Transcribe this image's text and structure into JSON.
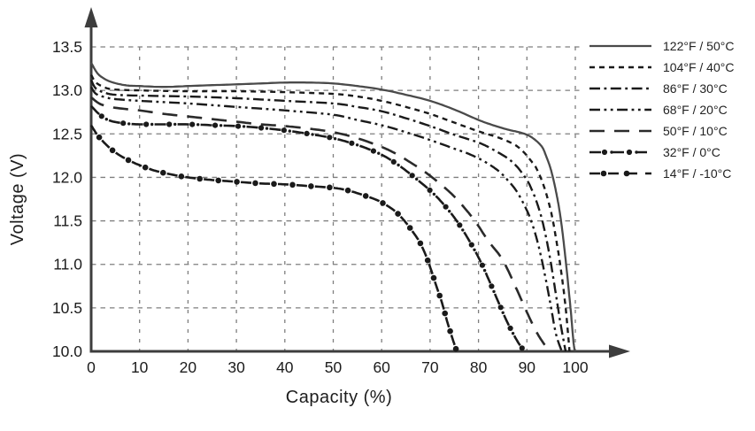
{
  "chart_data": {
    "type": "line",
    "title": "",
    "xlabel": "Capacity (%)",
    "ylabel": "Voltage (V)",
    "xlim": [
      0,
      100
    ],
    "ylim": [
      10.0,
      13.5
    ],
    "x_ticks": [
      0,
      10,
      20,
      30,
      40,
      50,
      60,
      70,
      80,
      90,
      100
    ],
    "y_ticks": [
      10.0,
      10.5,
      11.0,
      11.5,
      12.0,
      12.5,
      13.0,
      13.5
    ],
    "grid": "dashed",
    "legend_position": "right",
    "series": [
      {
        "name": "122°F / 50°C",
        "style": "solid",
        "points": [
          [
            0,
            13.32
          ],
          [
            1,
            13.22
          ],
          [
            2,
            13.16
          ],
          [
            4,
            13.1
          ],
          [
            7,
            13.06
          ],
          [
            10,
            13.05
          ],
          [
            15,
            13.04
          ],
          [
            20,
            13.05
          ],
          [
            25,
            13.06
          ],
          [
            30,
            13.07
          ],
          [
            35,
            13.08
          ],
          [
            40,
            13.09
          ],
          [
            45,
            13.09
          ],
          [
            50,
            13.08
          ],
          [
            55,
            13.05
          ],
          [
            60,
            13.01
          ],
          [
            65,
            12.95
          ],
          [
            70,
            12.88
          ],
          [
            75,
            12.78
          ],
          [
            80,
            12.66
          ],
          [
            83,
            12.6
          ],
          [
            86,
            12.55
          ],
          [
            89,
            12.51
          ],
          [
            91,
            12.46
          ],
          [
            93,
            12.36
          ],
          [
            94,
            12.24
          ],
          [
            95,
            12.08
          ],
          [
            96,
            11.84
          ],
          [
            97,
            11.52
          ],
          [
            98,
            11.05
          ],
          [
            99,
            10.5
          ],
          [
            99.6,
            10.12
          ],
          [
            99.9,
            10.0
          ]
        ]
      },
      {
        "name": "104°F / 40°C",
        "style": "dashed",
        "points": [
          [
            0,
            13.18
          ],
          [
            1,
            13.09
          ],
          [
            3,
            13.03
          ],
          [
            5,
            13.01
          ],
          [
            10,
            13.0
          ],
          [
            20,
            12.99
          ],
          [
            30,
            12.99
          ],
          [
            40,
            12.98
          ],
          [
            50,
            12.96
          ],
          [
            55,
            12.93
          ],
          [
            60,
            12.88
          ],
          [
            65,
            12.81
          ],
          [
            70,
            12.73
          ],
          [
            75,
            12.63
          ],
          [
            80,
            12.53
          ],
          [
            84,
            12.46
          ],
          [
            87,
            12.39
          ],
          [
            89,
            12.31
          ],
          [
            91,
            12.18
          ],
          [
            92,
            12.1
          ],
          [
            93.5,
            11.9
          ],
          [
            95,
            11.6
          ],
          [
            96,
            11.3
          ],
          [
            97,
            10.95
          ],
          [
            98,
            10.5
          ],
          [
            98.8,
            10.0
          ]
        ]
      },
      {
        "name": "86°F / 30°C",
        "style": "dashdot",
        "points": [
          [
            0,
            13.12
          ],
          [
            1,
            13.02
          ],
          [
            3,
            12.97
          ],
          [
            5,
            12.95
          ],
          [
            10,
            12.94
          ],
          [
            20,
            12.93
          ],
          [
            30,
            12.91
          ],
          [
            40,
            12.88
          ],
          [
            50,
            12.85
          ],
          [
            55,
            12.81
          ],
          [
            60,
            12.76
          ],
          [
            65,
            12.68
          ],
          [
            70,
            12.59
          ],
          [
            75,
            12.49
          ],
          [
            80,
            12.4
          ],
          [
            83,
            12.32
          ],
          [
            86,
            12.22
          ],
          [
            88,
            12.12
          ],
          [
            90,
            11.97
          ],
          [
            91,
            11.86
          ],
          [
            92,
            11.72
          ],
          [
            93,
            11.54
          ],
          [
            94,
            11.3
          ],
          [
            95,
            11.0
          ],
          [
            96,
            10.65
          ],
          [
            97,
            10.3
          ],
          [
            98,
            10.0
          ]
        ]
      },
      {
        "name": "68°F / 20°C",
        "style": "dashdotdot",
        "points": [
          [
            0,
            13.04
          ],
          [
            1,
            12.96
          ],
          [
            3,
            12.92
          ],
          [
            5,
            12.9
          ],
          [
            10,
            12.88
          ],
          [
            20,
            12.85
          ],
          [
            30,
            12.81
          ],
          [
            40,
            12.77
          ],
          [
            50,
            12.72
          ],
          [
            55,
            12.66
          ],
          [
            60,
            12.6
          ],
          [
            65,
            12.52
          ],
          [
            70,
            12.43
          ],
          [
            75,
            12.33
          ],
          [
            78,
            12.27
          ],
          [
            81,
            12.19
          ],
          [
            84,
            12.08
          ],
          [
            86,
            11.97
          ],
          [
            88,
            11.83
          ],
          [
            90,
            11.62
          ],
          [
            91,
            11.48
          ],
          [
            92,
            11.3
          ],
          [
            93,
            11.07
          ],
          [
            94,
            10.8
          ],
          [
            95,
            10.5
          ],
          [
            96,
            10.2
          ],
          [
            97.2,
            10.0
          ]
        ]
      },
      {
        "name": "50°F / 10°C",
        "style": "longdash",
        "points": [
          [
            0,
            12.92
          ],
          [
            2,
            12.84
          ],
          [
            5,
            12.8
          ],
          [
            10,
            12.77
          ],
          [
            15,
            12.73
          ],
          [
            20,
            12.7
          ],
          [
            25,
            12.67
          ],
          [
            30,
            12.64
          ],
          [
            35,
            12.61
          ],
          [
            40,
            12.59
          ],
          [
            45,
            12.56
          ],
          [
            50,
            12.52
          ],
          [
            55,
            12.45
          ],
          [
            60,
            12.35
          ],
          [
            63,
            12.27
          ],
          [
            66,
            12.17
          ],
          [
            69,
            12.06
          ],
          [
            72,
            11.93
          ],
          [
            75,
            11.78
          ],
          [
            78,
            11.59
          ],
          [
            80,
            11.44
          ],
          [
            82,
            11.27
          ],
          [
            85,
            11.05
          ],
          [
            88,
            10.7
          ],
          [
            90,
            10.45
          ],
          [
            92,
            10.22
          ],
          [
            94,
            10.05
          ],
          [
            95,
            10.0
          ]
        ]
      },
      {
        "name": "32°F / 0°C",
        "style": "dash-dot-markers",
        "points": [
          [
            0,
            12.82
          ],
          [
            2,
            12.71
          ],
          [
            4,
            12.65
          ],
          [
            7,
            12.62
          ],
          [
            10,
            12.61
          ],
          [
            15,
            12.61
          ],
          [
            20,
            12.61
          ],
          [
            25,
            12.6
          ],
          [
            30,
            12.59
          ],
          [
            35,
            12.57
          ],
          [
            40,
            12.54
          ],
          [
            45,
            12.5
          ],
          [
            50,
            12.45
          ],
          [
            54,
            12.39
          ],
          [
            58,
            12.31
          ],
          [
            61,
            12.23
          ],
          [
            64,
            12.12
          ],
          [
            67,
            11.99
          ],
          [
            70,
            11.85
          ],
          [
            72,
            11.74
          ],
          [
            74,
            11.61
          ],
          [
            76,
            11.46
          ],
          [
            78,
            11.28
          ],
          [
            80,
            11.08
          ],
          [
            82,
            10.84
          ],
          [
            84,
            10.58
          ],
          [
            86,
            10.33
          ],
          [
            88,
            10.12
          ],
          [
            89.5,
            10.0
          ]
        ]
      },
      {
        "name": "14°F / -10°C",
        "style": "dash-marker",
        "points": [
          [
            0,
            12.6
          ],
          [
            1,
            12.51
          ],
          [
            2,
            12.44
          ],
          [
            4,
            12.33
          ],
          [
            6,
            12.25
          ],
          [
            8,
            12.19
          ],
          [
            10,
            12.14
          ],
          [
            13,
            12.08
          ],
          [
            16,
            12.04
          ],
          [
            20,
            12.0
          ],
          [
            25,
            11.97
          ],
          [
            30,
            11.95
          ],
          [
            35,
            11.93
          ],
          [
            40,
            11.92
          ],
          [
            45,
            11.9
          ],
          [
            50,
            11.88
          ],
          [
            53,
            11.85
          ],
          [
            56,
            11.8
          ],
          [
            59,
            11.74
          ],
          [
            61,
            11.68
          ],
          [
            63,
            11.6
          ],
          [
            65,
            11.48
          ],
          [
            67,
            11.33
          ],
          [
            68,
            11.24
          ],
          [
            69,
            11.12
          ],
          [
            70,
            10.97
          ],
          [
            71,
            10.8
          ],
          [
            72.5,
            10.55
          ],
          [
            73.5,
            10.35
          ],
          [
            74.5,
            10.17
          ],
          [
            75.5,
            10.0
          ]
        ]
      }
    ]
  },
  "colors": {
    "axis": "#3d3d3d",
    "grid": "#7f7f7f",
    "solid_line": "#4a4a4a",
    "dark_line": "#1a1a1a",
    "text": "#1c1c1c"
  }
}
